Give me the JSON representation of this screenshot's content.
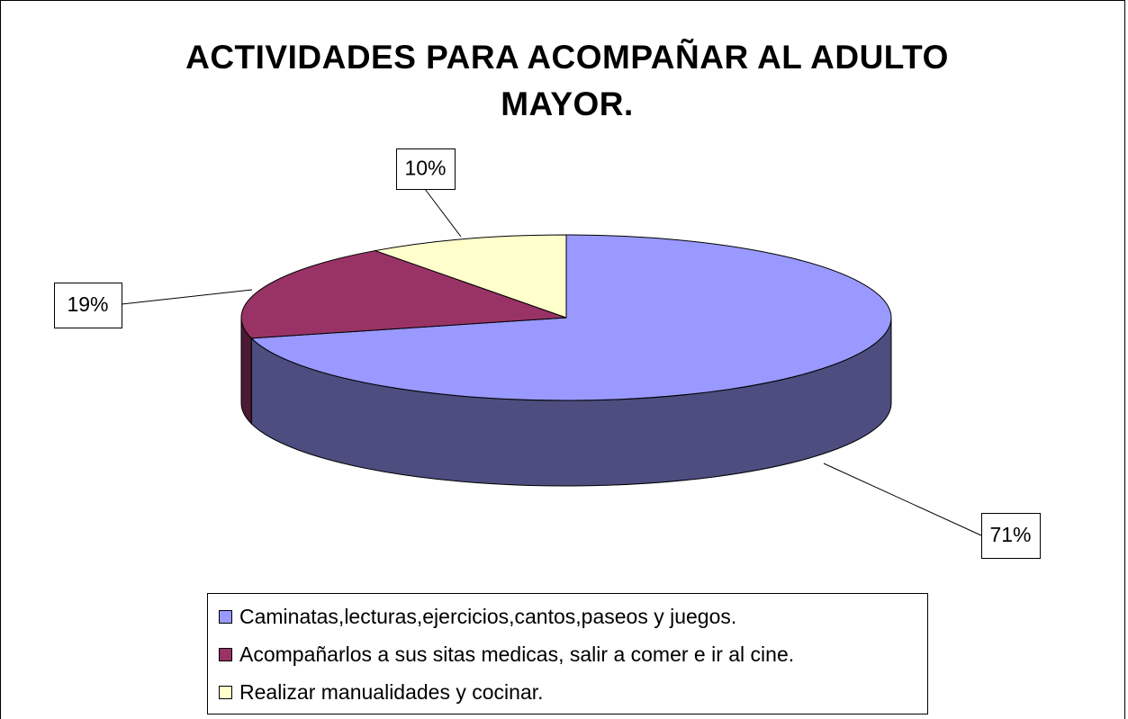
{
  "chart_data": {
    "type": "pie",
    "title": "ACTIVIDADES PARA ACOMPAÑAR AL ADULTO MAYOR.",
    "categories": [
      "Caminatas,lecturas,ejercicios,cantos,paseos y juegos.",
      "Acompañarlos a sus sitas medicas, salir a comer e ir al cine.",
      "Realizar manualidades y cocinar."
    ],
    "values": [
      71,
      19,
      10
    ],
    "value_labels": [
      "71%",
      "19%",
      "10%"
    ],
    "colors": [
      "#9999ff",
      "#993366",
      "#ffffcc"
    ],
    "side_colors": [
      "#4d4d80",
      "#4d1a33",
      "#80806a"
    ],
    "three_d": true,
    "legend": "bottom"
  }
}
